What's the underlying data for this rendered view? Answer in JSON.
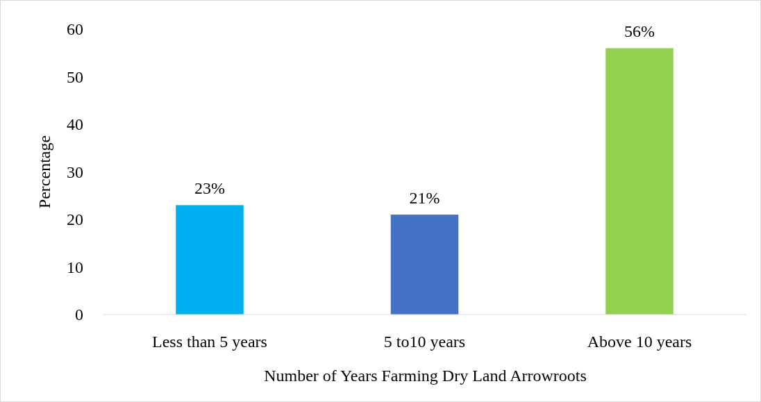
{
  "chart_data": {
    "type": "bar",
    "xlabel": "Number of Years Farming Dry Land Arrowroots",
    "ylabel": "Percentage",
    "categories": [
      "Less than 5 years",
      "5 to10 years",
      "Above 10 years"
    ],
    "values": [
      23,
      21,
      56
    ],
    "colors": [
      "#00b0f0",
      "#4472c4",
      "#92d050"
    ],
    "value_labels": [
      "23%",
      "21%",
      "56%"
    ],
    "ylim": [
      0,
      60
    ],
    "yticks": [
      0,
      10,
      20,
      30,
      40,
      50,
      60
    ],
    "grid": false
  }
}
